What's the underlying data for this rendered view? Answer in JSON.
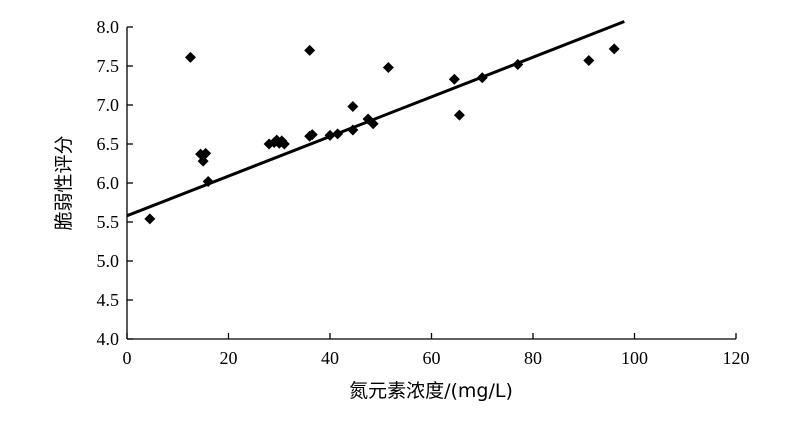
{
  "chart_data": {
    "type": "scatter",
    "xlabel": "氮元素浓度/(mg/L)",
    "ylabel": "脆弱性评分",
    "xlim": [
      0,
      120
    ],
    "ylim": [
      4.0,
      8.0
    ],
    "x_ticks": [
      "0",
      "20",
      "40",
      "60",
      "80",
      "100",
      "120"
    ],
    "y_ticks": [
      "4.0",
      "4.5",
      "5.0",
      "5.5",
      "6.0",
      "6.5",
      "7.0",
      "7.5",
      "8.0"
    ],
    "grid": false,
    "legend": "none",
    "marker": "diamond",
    "color": "#000000",
    "points": [
      {
        "x": 4.5,
        "y": 5.54
      },
      {
        "x": 12.5,
        "y": 7.61
      },
      {
        "x": 14.5,
        "y": 6.37
      },
      {
        "x": 15.0,
        "y": 6.28
      },
      {
        "x": 15.5,
        "y": 6.38
      },
      {
        "x": 16.0,
        "y": 6.02
      },
      {
        "x": 28.0,
        "y": 6.5
      },
      {
        "x": 29.0,
        "y": 6.52
      },
      {
        "x": 29.5,
        "y": 6.55
      },
      {
        "x": 30.0,
        "y": 6.51
      },
      {
        "x": 30.5,
        "y": 6.54
      },
      {
        "x": 31.0,
        "y": 6.5
      },
      {
        "x": 36.0,
        "y": 7.7
      },
      {
        "x": 36.0,
        "y": 6.6
      },
      {
        "x": 36.5,
        "y": 6.62
      },
      {
        "x": 40.0,
        "y": 6.61
      },
      {
        "x": 41.5,
        "y": 6.63
      },
      {
        "x": 44.5,
        "y": 6.98
      },
      {
        "x": 44.5,
        "y": 6.68
      },
      {
        "x": 47.5,
        "y": 6.82
      },
      {
        "x": 48.5,
        "y": 6.76
      },
      {
        "x": 51.5,
        "y": 7.48
      },
      {
        "x": 64.5,
        "y": 7.33
      },
      {
        "x": 65.5,
        "y": 6.87
      },
      {
        "x": 70.0,
        "y": 7.35
      },
      {
        "x": 77.0,
        "y": 7.52
      },
      {
        "x": 91.0,
        "y": 7.57
      },
      {
        "x": 96.0,
        "y": 7.72
      }
    ],
    "trendline": {
      "type": "linear",
      "x": [
        0,
        98
      ],
      "y": [
        5.58,
        8.07
      ]
    }
  }
}
